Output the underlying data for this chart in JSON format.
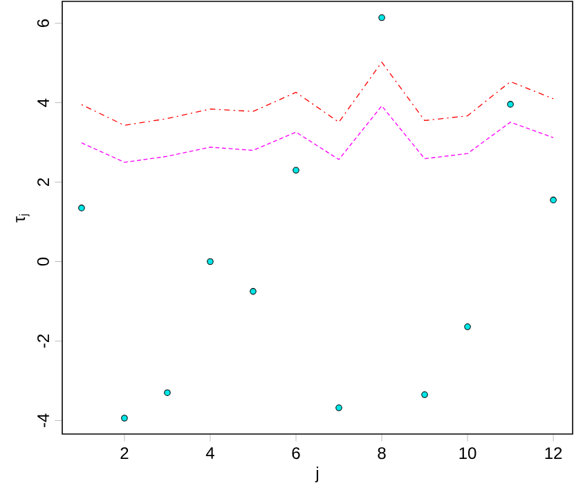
{
  "chart_data": {
    "type": "scatter",
    "xlabel": "j",
    "ylabel": "τ$_{j}$",
    "x": [
      1,
      2,
      3,
      4,
      5,
      6,
      7,
      8,
      9,
      10,
      11,
      12
    ],
    "series": [
      {
        "color": "#00e5e5",
        "marker": "circle",
        "values": [
          1.35,
          -3.94,
          -3.3,
          0.0,
          -0.75,
          2.3,
          -3.68,
          6.14,
          -3.35,
          -1.64,
          3.96,
          1.55
        ]
      },
      {
        "type": "line",
        "color": "#ff0000",
        "line_style": "dashdot",
        "marker": "none",
        "values": [
          3.95,
          3.43,
          3.6,
          3.84,
          3.78,
          4.26,
          3.51,
          5.02,
          3.55,
          3.67,
          4.53,
          4.1
        ]
      },
      {
        "type": "line",
        "color": "#ff00ff",
        "line_style": "dashed",
        "marker": "none",
        "values": [
          2.99,
          2.5,
          2.65,
          2.88,
          2.8,
          3.26,
          2.57,
          3.92,
          2.59,
          2.72,
          3.51,
          3.12
        ]
      }
    ],
    "xlim": [
      0.55,
      12.45
    ],
    "ylim": [
      -4.34,
      6.55
    ],
    "xticks": [
      2,
      4,
      6,
      8,
      10,
      12
    ],
    "yticks": [
      -4,
      -2,
      0,
      2,
      4,
      6
    ],
    "grid": false
  }
}
